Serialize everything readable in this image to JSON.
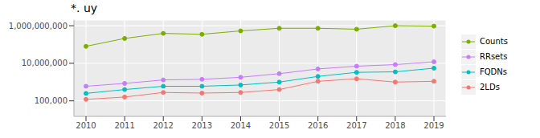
{
  "chart_data": {
    "type": "line",
    "title": "*. uy",
    "categories": [
      "2010",
      "2011",
      "2012",
      "2013",
      "2014",
      "2015",
      "2016",
      "2017",
      "2018",
      "2019"
    ],
    "series": [
      {
        "name": "Counts",
        "color": "#7CAE00",
        "marker": "circle",
        "values": [
          80000000,
          210000000,
          390000000,
          350000000,
          530000000,
          730000000,
          730000000,
          650000000,
          1000000000,
          950000000
        ]
      },
      {
        "name": "RRsets",
        "color": "#C77CFF",
        "marker": "circle",
        "values": [
          600000,
          850000,
          1300000,
          1400000,
          1800000,
          2800000,
          5000000,
          7000000,
          8500000,
          12000000
        ]
      },
      {
        "name": "FQDNs",
        "color": "#00BFC4",
        "marker": "circle",
        "values": [
          250000,
          400000,
          600000,
          600000,
          700000,
          1000000,
          2000000,
          3300000,
          3500000,
          5500000
        ]
      },
      {
        "name": "2LDs",
        "color": "#F8766D",
        "marker": "circle",
        "values": [
          120000,
          160000,
          280000,
          260000,
          280000,
          400000,
          1100000,
          1500000,
          1000000,
          1100000
        ]
      }
    ],
    "ylim": [
      15000,
      2000000000
    ],
    "yticks": [
      {
        "value": 100000,
        "label": "100,000"
      },
      {
        "value": 10000000,
        "label": "10,000,000"
      },
      {
        "value": 1000000000,
        "label": "1,000,000,000"
      }
    ],
    "log": "y",
    "grid": true,
    "legend": "right"
  }
}
